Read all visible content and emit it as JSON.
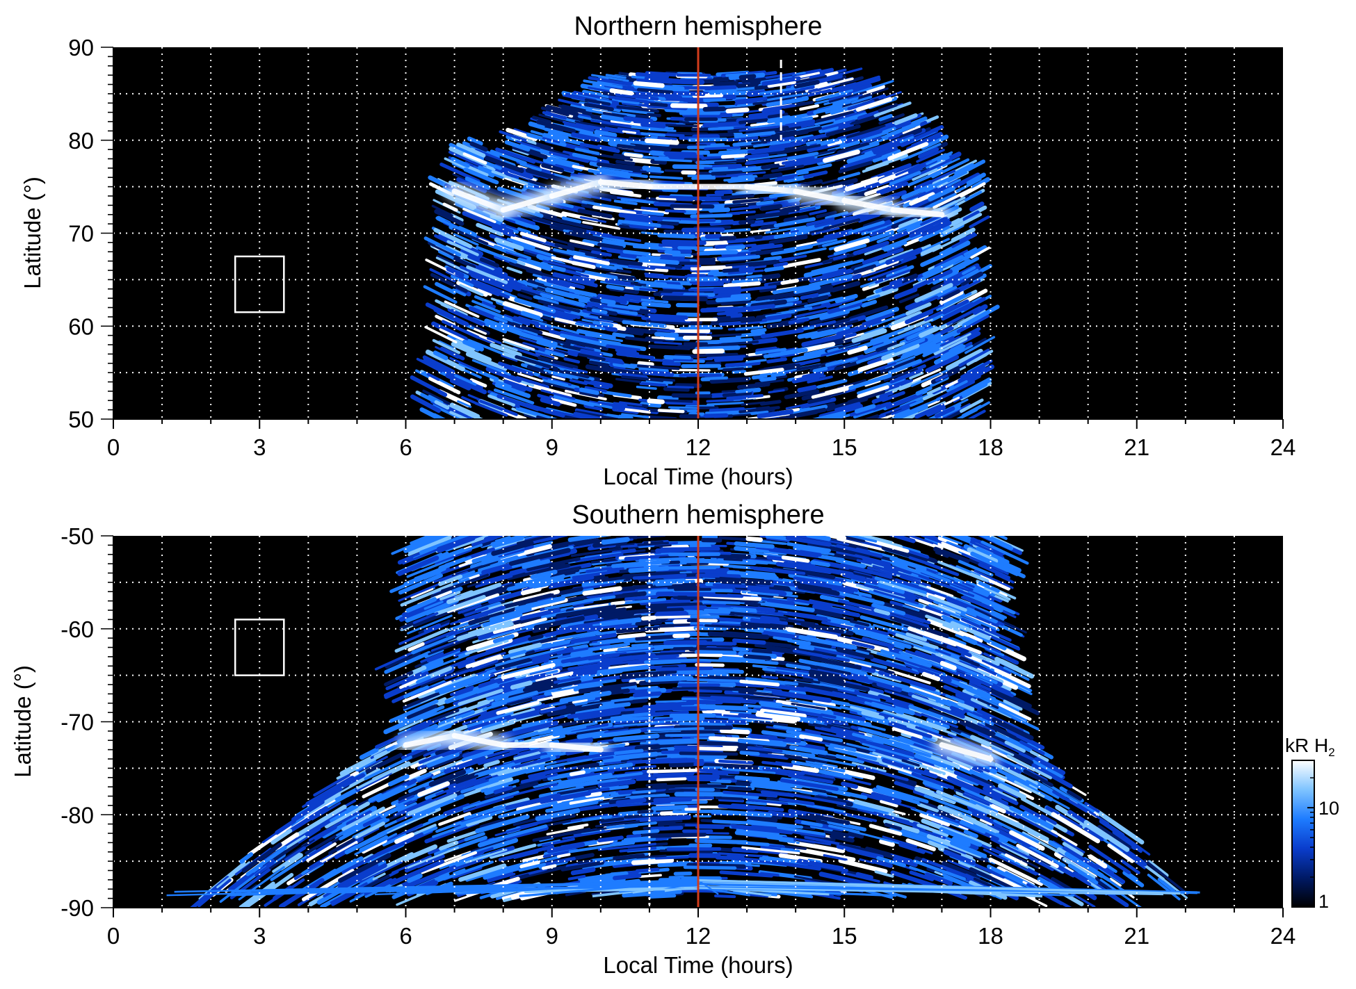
{
  "chart_data": [
    {
      "type": "heatmap",
      "title": "Northern hemisphere",
      "xlabel": "Local Time (hours)",
      "ylabel": "Latitude (°)",
      "xlim": [
        0,
        24
      ],
      "ylim": [
        50,
        90
      ],
      "xticks": [
        "0",
        "3",
        "6",
        "9",
        "12",
        "15",
        "18",
        "21",
        "24"
      ],
      "yticks": [
        "50",
        "60",
        "70",
        "80",
        "90"
      ],
      "grid": true,
      "background": "#000000",
      "emission_lt_range": [
        6.4,
        17.8
      ],
      "auroral_oval": [
        {
          "lt": 7.0,
          "lat": 74.5
        },
        {
          "lt": 8.0,
          "lat": 72.5
        },
        {
          "lt": 9.0,
          "lat": 74.0
        },
        {
          "lt": 10.0,
          "lat": 75.5
        },
        {
          "lt": 11.0,
          "lat": 75.0
        },
        {
          "lt": 12.0,
          "lat": 75.0
        },
        {
          "lt": 13.0,
          "lat": 75.0
        },
        {
          "lt": 14.0,
          "lat": 74.5
        },
        {
          "lt": 15.0,
          "lat": 73.5
        },
        {
          "lt": 16.0,
          "lat": 72.5
        },
        {
          "lt": 17.0,
          "lat": 72.0
        }
      ],
      "noon_line_lt": 12,
      "dashed_line_lt": 13.7,
      "box": {
        "lt": [
          2.5,
          3.5
        ],
        "lat": [
          61.5,
          67.5
        ]
      }
    },
    {
      "type": "heatmap",
      "title": "Southern hemisphere",
      "xlabel": "Local Time (hours)",
      "ylabel": "Latitude (°)",
      "xlim": [
        0,
        24
      ],
      "ylim": [
        -90,
        -50
      ],
      "xticks": [
        "0",
        "3",
        "6",
        "9",
        "12",
        "15",
        "18",
        "21",
        "24"
      ],
      "yticks": [
        "-90",
        "-80",
        "-70",
        "-60",
        "-50"
      ],
      "grid": true,
      "background": "#000000",
      "emission_lt_range": [
        1.0,
        22.6
      ],
      "auroral_oval": [
        {
          "lt": 6.0,
          "lat": -72.5
        },
        {
          "lt": 7.0,
          "lat": -71.5
        },
        {
          "lt": 8.0,
          "lat": -72.5
        },
        {
          "lt": 9.0,
          "lat": -72.5
        },
        {
          "lt": 10.0,
          "lat": -73.0
        },
        {
          "lt": 17.0,
          "lat": -72.5
        },
        {
          "lt": 18.0,
          "lat": -74.0
        }
      ],
      "noon_line_lt": 12,
      "dashed_line_lt": 11.0,
      "box": {
        "lt": [
          2.5,
          3.5
        ],
        "lat": [
          -65,
          -59
        ]
      }
    }
  ],
  "colorbar": {
    "label_main": "kR H",
    "label_sub": "2",
    "scale": "log",
    "range": [
      1,
      30
    ],
    "ticks": [
      {
        "value": 1,
        "label": "1"
      },
      {
        "value": 10,
        "label": "10"
      }
    ],
    "colors": [
      "#000000",
      "#001a66",
      "#0a3dcc",
      "#1e7cff",
      "#7fc4ff",
      "#ffffff"
    ]
  },
  "colors": {
    "noon_line": "#d23c1c",
    "grid": "#ffffff",
    "plot_background": "#000000"
  }
}
